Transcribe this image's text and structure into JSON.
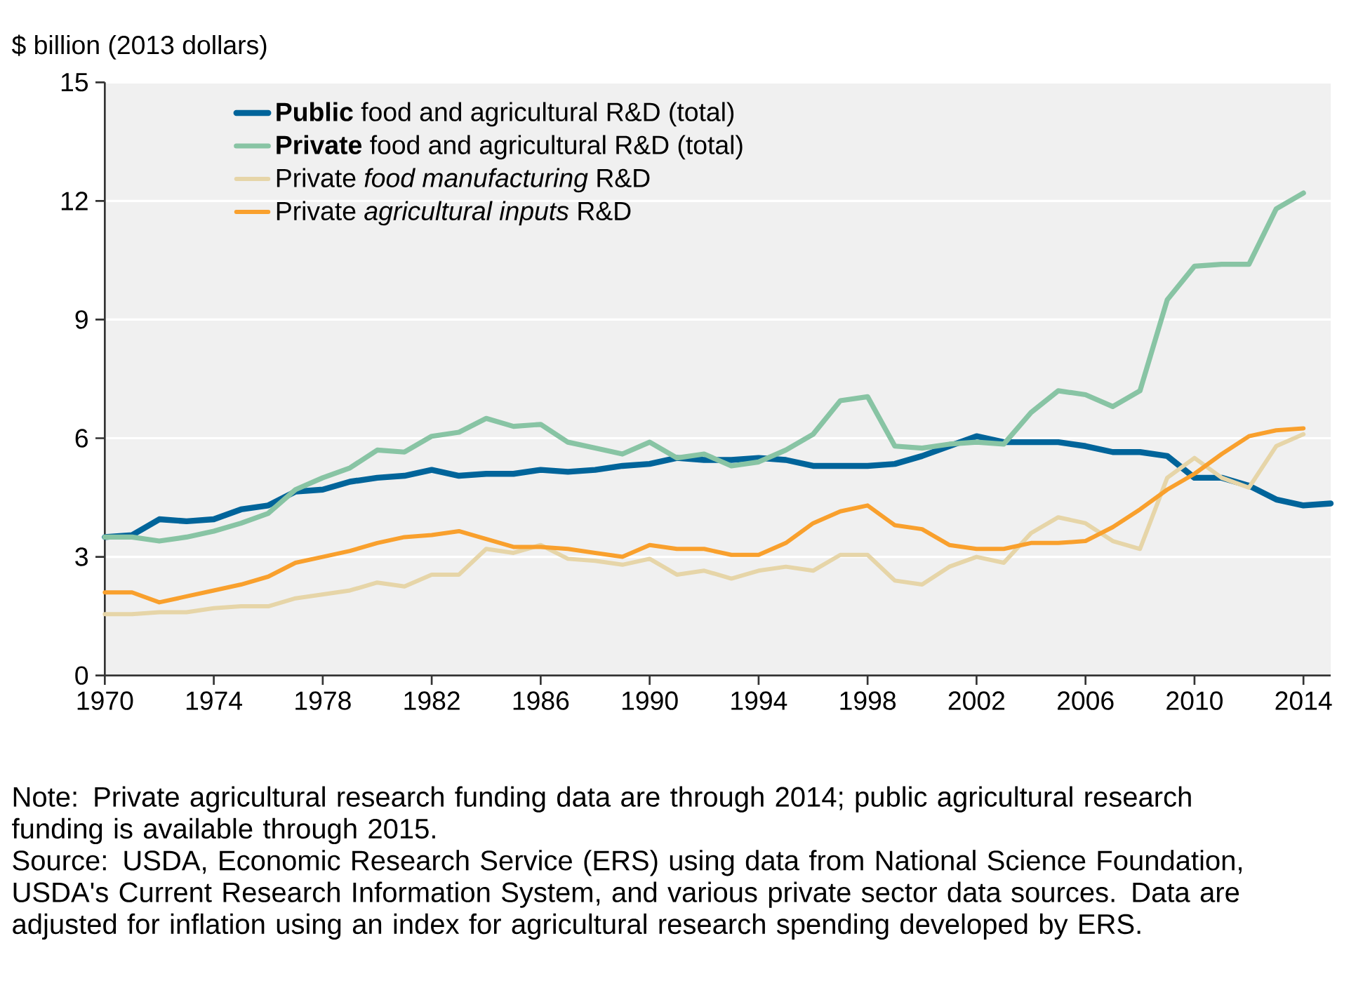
{
  "chart_data": {
    "type": "line",
    "ylabel": "$ billion (2013 dollars)",
    "x": [
      1970,
      1971,
      1972,
      1973,
      1974,
      1975,
      1976,
      1977,
      1978,
      1979,
      1980,
      1981,
      1982,
      1983,
      1984,
      1985,
      1986,
      1987,
      1988,
      1989,
      1990,
      1991,
      1992,
      1993,
      1994,
      1995,
      1996,
      1997,
      1998,
      1999,
      2000,
      2001,
      2002,
      2003,
      2004,
      2005,
      2006,
      2007,
      2008,
      2009,
      2010,
      2011,
      2012,
      2013,
      2014,
      2015
    ],
    "xlim": [
      1970,
      2015
    ],
    "xticks": [
      1970,
      1974,
      1978,
      1982,
      1986,
      1990,
      1994,
      1998,
      2002,
      2006,
      2010,
      2014
    ],
    "ylim": [
      0,
      15
    ],
    "yticks": [
      0,
      3,
      6,
      9,
      12,
      15
    ],
    "grid": "y",
    "legend": "top left",
    "series": [
      {
        "name": "**Public** food and agricultural R&D (total)",
        "color": "#00649a",
        "values": [
          3.5,
          3.55,
          3.95,
          3.9,
          3.95,
          4.2,
          4.3,
          4.65,
          4.7,
          4.9,
          5.0,
          5.05,
          5.2,
          5.05,
          5.1,
          5.1,
          5.2,
          5.15,
          5.2,
          5.3,
          5.35,
          5.5,
          5.45,
          5.45,
          5.5,
          5.45,
          5.3,
          5.3,
          5.3,
          5.35,
          5.55,
          5.8,
          6.05,
          5.9,
          5.9,
          5.9,
          5.8,
          5.65,
          5.65,
          5.55,
          5.0,
          5.0,
          4.8,
          4.45,
          4.3,
          4.35
        ]
      },
      {
        "name": "**Private** food and agricultural R&D (total)",
        "color": "#88c4a4",
        "values": [
          3.5,
          3.5,
          3.4,
          3.5,
          3.65,
          3.85,
          4.1,
          4.7,
          5.0,
          5.25,
          5.7,
          5.65,
          6.05,
          6.15,
          6.5,
          6.3,
          6.35,
          5.9,
          5.75,
          5.6,
          5.9,
          5.5,
          5.6,
          5.3,
          5.4,
          5.7,
          6.1,
          6.95,
          7.05,
          5.8,
          5.75,
          5.85,
          5.9,
          5.85,
          6.65,
          7.2,
          7.1,
          6.8,
          7.2,
          9.5,
          10.35,
          10.4,
          10.4,
          11.8,
          12.2,
          null
        ]
      },
      {
        "name": "Private *food manufacturing* R&D",
        "color": "#e6d5a8",
        "values": [
          1.55,
          1.55,
          1.6,
          1.6,
          1.7,
          1.75,
          1.75,
          1.95,
          2.05,
          2.15,
          2.35,
          2.25,
          2.55,
          2.55,
          3.2,
          3.1,
          3.3,
          2.95,
          2.9,
          2.8,
          2.95,
          2.55,
          2.65,
          2.45,
          2.65,
          2.75,
          2.65,
          3.05,
          3.05,
          2.4,
          2.3,
          2.75,
          3.0,
          2.85,
          3.6,
          4.0,
          3.85,
          3.4,
          3.2,
          5.0,
          5.5,
          5.0,
          4.75,
          5.8,
          6.1,
          null
        ]
      },
      {
        "name": "Private *agricultural inputs* R&D",
        "color": "#f9a02d",
        "values": [
          2.1,
          2.1,
          1.85,
          2.0,
          2.15,
          2.3,
          2.5,
          2.85,
          3.0,
          3.15,
          3.35,
          3.5,
          3.55,
          3.65,
          3.45,
          3.25,
          3.25,
          3.2,
          3.1,
          3.0,
          3.3,
          3.2,
          3.2,
          3.05,
          3.05,
          3.35,
          3.85,
          4.15,
          4.3,
          3.8,
          3.7,
          3.3,
          3.2,
          3.2,
          3.35,
          3.35,
          3.4,
          3.75,
          4.2,
          4.7,
          5.1,
          5.6,
          6.05,
          6.2,
          6.25,
          null
        ]
      }
    ],
    "annotations": [
      "Note: Private agricultural research funding data are through 2014; public agricultural research funding is available through 2015.",
      "Source: USDA, Economic Research Service (ERS) using data from National Science Foundation, USDA's Current Research Information System, and various private sector data sources. Data are adjusted for inflation using an index for agricultural research spending developed by ERS."
    ]
  }
}
